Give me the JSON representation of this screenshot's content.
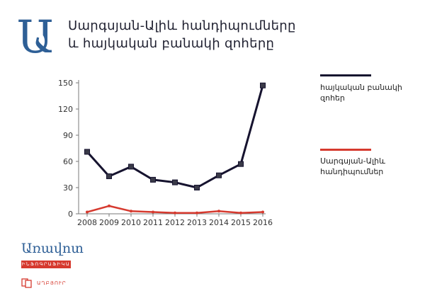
{
  "header": {
    "logo_letter": "Ա",
    "title": "Սարգսյան-Ալիև հանդիպումները և հայկական բանակի զոհերը"
  },
  "legend": [
    {
      "label": "հայկական բանակի զոհեր",
      "color": "#16132f"
    },
    {
      "label": "Սարգսյան-Ալիև հանդիպումներ",
      "color": "#d63a2f"
    }
  ],
  "footer": {
    "brand": "Առավոտ",
    "tag": "ԻՆՖՈԳՐԱՖԻԿԱ",
    "source": "ԱՂԲՅՈՒՐ"
  },
  "chart_data": {
    "type": "line",
    "categories": [
      "2008",
      "2009",
      "2010",
      "2011",
      "2012",
      "2013",
      "2014",
      "2015",
      "2016"
    ],
    "series": [
      {
        "name": "հայկական բանակի զոհեր",
        "color": "#16132f",
        "values": [
          71,
          43,
          54,
          39,
          36,
          30,
          44,
          57,
          147
        ]
      },
      {
        "name": "Սարգսյան-Ալիև հանդիպումներ",
        "color": "#d63a2f",
        "values": [
          2,
          9,
          3,
          2,
          1,
          1,
          3,
          1,
          2
        ]
      }
    ],
    "yticks": [
      "0",
      "30",
      "60",
      "90",
      "120",
      "150"
    ],
    "ylim": [
      0,
      150
    ],
    "grid": false
  }
}
